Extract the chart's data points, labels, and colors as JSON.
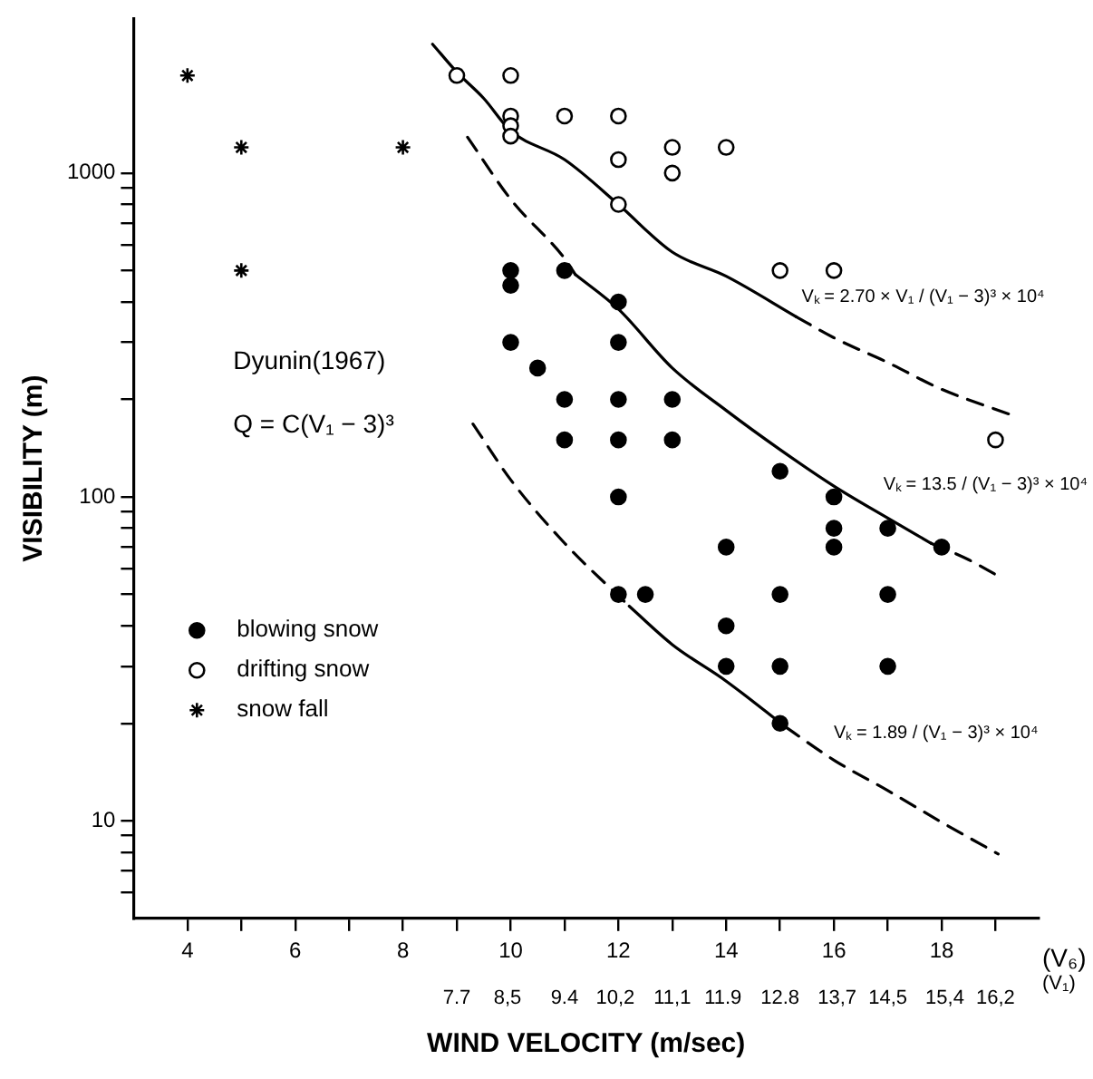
{
  "chart_data": {
    "type": "scatter",
    "xlabel": "WIND VELOCITY (m/sec)",
    "ylabel": "VISIBILITY (m)",
    "x2label": "(V₁)",
    "annotations": [
      "Dyunin(1967)",
      "Q = C(V₁ − 3)³",
      "(V₆)",
      "Vₖ = 2.70 × V₁ / (V₁ − 3)³ × 10⁴",
      "Vₖ = 13.5 / (V₁ − 3)³ × 10⁴",
      "Vₖ = 1.89 / (V₁ − 3)³ × 10⁴"
    ],
    "log": "y",
    "grid": false,
    "legend": "left",
    "xlim": [
      3,
      19.8
    ],
    "ylim": [
      5,
      3000
    ],
    "xticks": [
      4,
      {
        "value": 5,
        "label": null
      },
      6,
      {
        "value": 7,
        "label": null
      },
      8,
      {
        "value": 9,
        "label": null
      },
      10,
      {
        "value": 11,
        "label": null
      },
      12,
      {
        "value": 13,
        "label": null
      },
      14,
      {
        "value": 15,
        "label": null
      },
      16,
      {
        "value": 17,
        "label": null
      },
      18,
      {
        "value": 19,
        "label": null
      }
    ],
    "x2lim": [
      2.6,
      16.88
    ],
    "x2ticks": [
      7.7,
      {
        "value": 8.5,
        "label": "8,5"
      },
      9.4,
      {
        "value": 10.2,
        "label": "10,2"
      },
      {
        "value": 11.1,
        "label": "11,1"
      },
      11.9,
      12.8,
      {
        "value": 13.7,
        "label": "13,7"
      },
      {
        "value": 14.5,
        "label": "14,5"
      },
      {
        "value": 15.4,
        "label": "15,4"
      },
      {
        "value": 16.2,
        "label": "16,2"
      }
    ],
    "yticks": [
      {
        "value": 6,
        "label": null
      },
      {
        "value": 7,
        "label": null
      },
      {
        "value": 8,
        "label": null
      },
      {
        "value": 9,
        "label": null
      },
      10,
      {
        "value": 20,
        "label": null
      },
      {
        "value": 30,
        "label": null
      },
      {
        "value": 40,
        "label": null
      },
      {
        "value": 50,
        "label": null
      },
      {
        "value": 60,
        "label": null
      },
      {
        "value": 70,
        "label": null
      },
      {
        "value": 80,
        "label": null
      },
      {
        "value": 90,
        "label": null
      },
      100,
      {
        "value": 200,
        "label": null
      },
      {
        "value": 300,
        "label": null
      },
      {
        "value": 400,
        "label": null
      },
      {
        "value": 500,
        "label": null
      },
      {
        "value": 600,
        "label": null
      },
      {
        "value": 700,
        "label": null
      },
      {
        "value": 800,
        "label": null
      },
      {
        "value": 900,
        "label": null
      },
      1000
    ],
    "series": [
      {
        "name": "blowing snow",
        "type": "scatter",
        "marker": "circle",
        "color": "#000000",
        "x": [
          10,
          10,
          11,
          12,
          10,
          12,
          10.5,
          11,
          12,
          13,
          11,
          12,
          13,
          15,
          12,
          16,
          16,
          17,
          16,
          18,
          14,
          12,
          12.5,
          15,
          17,
          14,
          14,
          15,
          17,
          15
        ],
        "values": [
          500,
          450,
          500,
          400,
          300,
          300,
          250,
          200,
          200,
          200,
          150,
          150,
          150,
          120,
          100,
          100,
          80,
          80,
          70,
          70,
          70,
          50,
          50,
          50,
          50,
          40,
          30,
          30,
          30,
          20
        ]
      },
      {
        "name": "drifting snow",
        "type": "scatter",
        "marker": "open circle",
        "color": "#000000",
        "x": [
          9,
          10,
          10,
          10,
          10,
          11,
          12,
          12,
          12,
          13,
          13,
          14,
          15,
          16,
          19
        ],
        "values": [
          2000,
          2000,
          1500,
          1400,
          1300,
          1500,
          1500,
          1100,
          800,
          1200,
          1000,
          1200,
          500,
          500,
          150
        ]
      },
      {
        "name": "snow fall",
        "type": "scatter",
        "marker": "cross",
        "color": "#000000",
        "x": [
          4,
          5,
          8,
          5
        ],
        "values": [
          2000,
          1200,
          1200,
          500
        ]
      },
      {
        "type": "line",
        "marker": "none",
        "line_style": "solid",
        "color": "#000000",
        "x": [
          8.55,
          9,
          9.5,
          10,
          11,
          12,
          13,
          14,
          15.3
        ],
        "values": [
          2500,
          2050,
          1700,
          1350,
          1100,
          800,
          570,
          480,
          360
        ]
      },
      {
        "type": "line",
        "marker": "none",
        "line_style": "dashed",
        "color": "#000000",
        "x": [
          15.3,
          16,
          17,
          18,
          19.3
        ],
        "values": [
          360,
          310,
          260,
          215,
          179
        ]
      },
      {
        "type": "line",
        "marker": "none",
        "line_style": "dashed",
        "color": "#000000",
        "x": [
          9.2,
          10,
          11,
          11.2
        ],
        "values": [
          1290,
          830,
          545,
          486
        ]
      },
      {
        "type": "line",
        "marker": "none",
        "line_style": "solid",
        "color": "#000000",
        "x": [
          11.2,
          12,
          13,
          14,
          15,
          16,
          17,
          17.8
        ],
        "values": [
          486,
          380,
          250,
          185,
          140,
          108,
          86,
          72
        ]
      },
      {
        "type": "line",
        "marker": "none",
        "line_style": "dashed",
        "color": "#000000",
        "x": [
          17.8,
          18.5,
          19.05
        ],
        "values": [
          72,
          64,
          57
        ]
      },
      {
        "type": "line",
        "marker": "none",
        "line_style": "dashed",
        "color": "#000000",
        "x": [
          9.3,
          10,
          11,
          12.2
        ],
        "values": [
          168,
          113,
          72,
          46
        ]
      },
      {
        "type": "line",
        "marker": "none",
        "line_style": "solid",
        "color": "#000000",
        "x": [
          12.2,
          13,
          14,
          15.1
        ],
        "values": [
          46,
          35,
          27,
          19.5
        ]
      },
      {
        "type": "line",
        "marker": "none",
        "line_style": "dashed",
        "color": "#000000",
        "x": [
          15.1,
          16,
          17,
          18,
          19.05
        ],
        "values": [
          19.5,
          15.4,
          12.4,
          9.9,
          7.9
        ]
      }
    ]
  }
}
